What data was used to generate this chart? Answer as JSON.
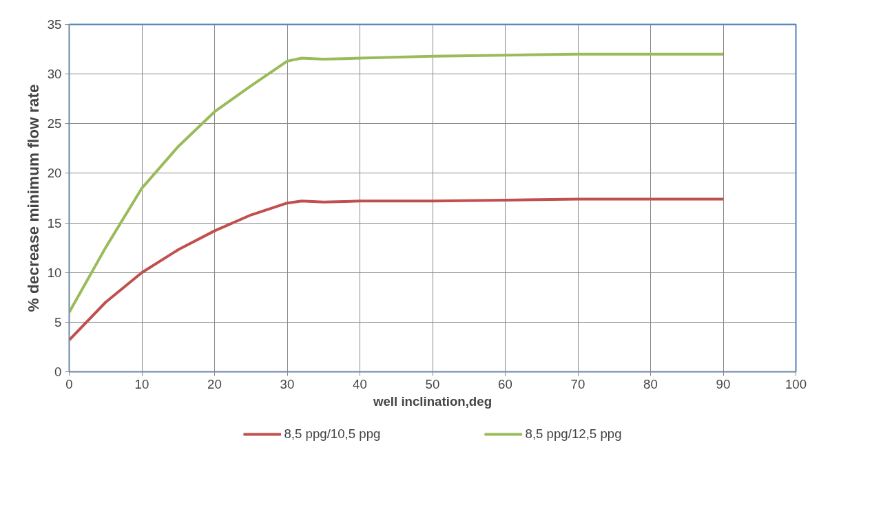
{
  "chart_data": {
    "type": "line",
    "xlabel": "well inclination,deg",
    "ylabel": "% decrease minimum flow rate",
    "x": [
      0,
      5,
      10,
      15,
      20,
      25,
      30,
      32,
      35,
      40,
      50,
      60,
      70,
      80,
      90
    ],
    "series": [
      {
        "name": "8,5 ppg/10,5 ppg",
        "color": "#c0504d",
        "values": [
          3.2,
          7,
          10,
          12.3,
          14.2,
          15.8,
          17,
          17.2,
          17.1,
          17.2,
          17.2,
          17.3,
          17.4,
          17.4,
          17.4
        ]
      },
      {
        "name": "8,5 ppg/12,5 ppg",
        "color": "#9bbb59",
        "values": [
          6,
          12.5,
          18.5,
          22.7,
          26.2,
          28.8,
          31.3,
          31.6,
          31.5,
          31.6,
          31.8,
          31.9,
          32,
          32,
          32
        ]
      }
    ],
    "xlim": [
      0,
      100
    ],
    "xticks": [
      0,
      10,
      20,
      30,
      40,
      50,
      60,
      70,
      80,
      90,
      100
    ],
    "ylim": [
      0,
      35
    ],
    "yticks": [
      0,
      5,
      10,
      15,
      20,
      25,
      30,
      35
    ],
    "grid": true,
    "legend": "bottom",
    "marker": "none",
    "line_style": "solid"
  }
}
